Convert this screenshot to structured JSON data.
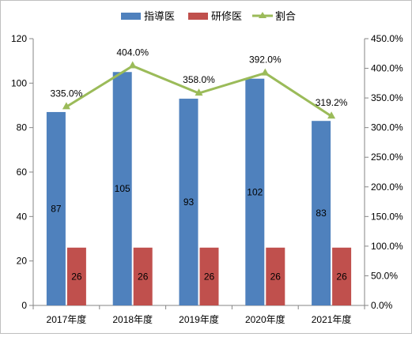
{
  "chart_data": {
    "type": "bar",
    "categories": [
      "2017年度",
      "2018年度",
      "2019年度",
      "2020年度",
      "2021年度"
    ],
    "series": [
      {
        "name": "指導医",
        "values": [
          87,
          105,
          93,
          102,
          83
        ],
        "color": "#4f81bd",
        "axis": "left",
        "kind": "bar"
      },
      {
        "name": "研修医",
        "values": [
          26,
          26,
          26,
          26,
          26
        ],
        "color": "#c0504d",
        "axis": "left",
        "kind": "bar"
      },
      {
        "name": "割合",
        "values": [
          335.0,
          404.0,
          358.0,
          392.0,
          319.2
        ],
        "color": "#9bbb59",
        "axis": "right",
        "kind": "line"
      }
    ],
    "data_labels": {
      "指導医": [
        "87",
        "105",
        "93",
        "102",
        "83"
      ],
      "研修医": [
        "26",
        "26",
        "26",
        "26",
        "26"
      ],
      "割合": [
        "335.0%",
        "404.0%",
        "358.0%",
        "392.0%",
        "319.2%"
      ]
    },
    "y_left": {
      "ylim": [
        0,
        120
      ],
      "ticks": [
        "0",
        "20",
        "40",
        "60",
        "80",
        "100",
        "120"
      ]
    },
    "y_right": {
      "ylim": [
        0,
        450
      ],
      "ticks": [
        "0.0%",
        "50.0%",
        "100.0%",
        "150.0%",
        "200.0%",
        "250.0%",
        "300.0%",
        "350.0%",
        "400.0%",
        "450.0%"
      ]
    },
    "legend_position": "top-center",
    "grid": false
  }
}
